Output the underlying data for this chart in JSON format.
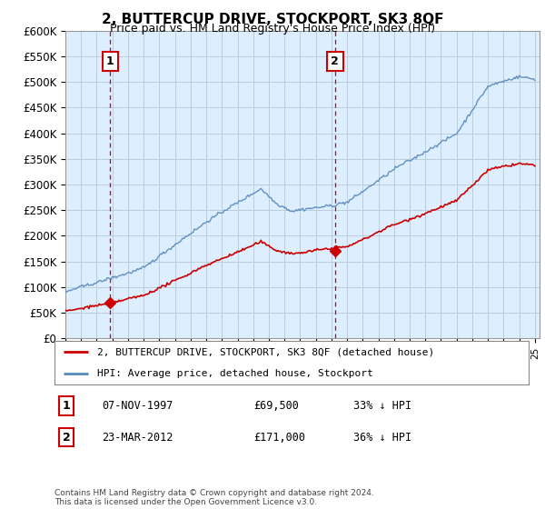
{
  "title": "2, BUTTERCUP DRIVE, STOCKPORT, SK3 8QF",
  "subtitle": "Price paid vs. HM Land Registry's House Price Index (HPI)",
  "ylabel_ticks": [
    "£0",
    "£50K",
    "£100K",
    "£150K",
    "£200K",
    "£250K",
    "£300K",
    "£350K",
    "£400K",
    "£450K",
    "£500K",
    "£550K",
    "£600K"
  ],
  "ytick_values": [
    0,
    50000,
    100000,
    150000,
    200000,
    250000,
    300000,
    350000,
    400000,
    450000,
    500000,
    550000,
    600000
  ],
  "ylim": [
    0,
    600000
  ],
  "hpi_color": "#5588bb",
  "price_color": "#cc0000",
  "marker_color": "#cc0000",
  "dashed_line_color": "#cc0000",
  "chart_bg": "#ddeeff",
  "legend_label_price": "2, BUTTERCUP DRIVE, STOCKPORT, SK3 8QF (detached house)",
  "legend_label_hpi": "HPI: Average price, detached house, Stockport",
  "annotation1_label": "1",
  "annotation1_date": "07-NOV-1997",
  "annotation1_price": "£69,500",
  "annotation1_pct": "33% ↓ HPI",
  "annotation2_label": "2",
  "annotation2_date": "23-MAR-2012",
  "annotation2_price": "£171,000",
  "annotation2_pct": "36% ↓ HPI",
  "footer": "Contains HM Land Registry data © Crown copyright and database right 2024.\nThis data is licensed under the Open Government Licence v3.0.",
  "sale1_year": 1997.86,
  "sale1_price": 69500,
  "sale2_year": 2012.23,
  "sale2_price": 171000,
  "background_color": "#ffffff",
  "grid_color": "#bbccdd"
}
